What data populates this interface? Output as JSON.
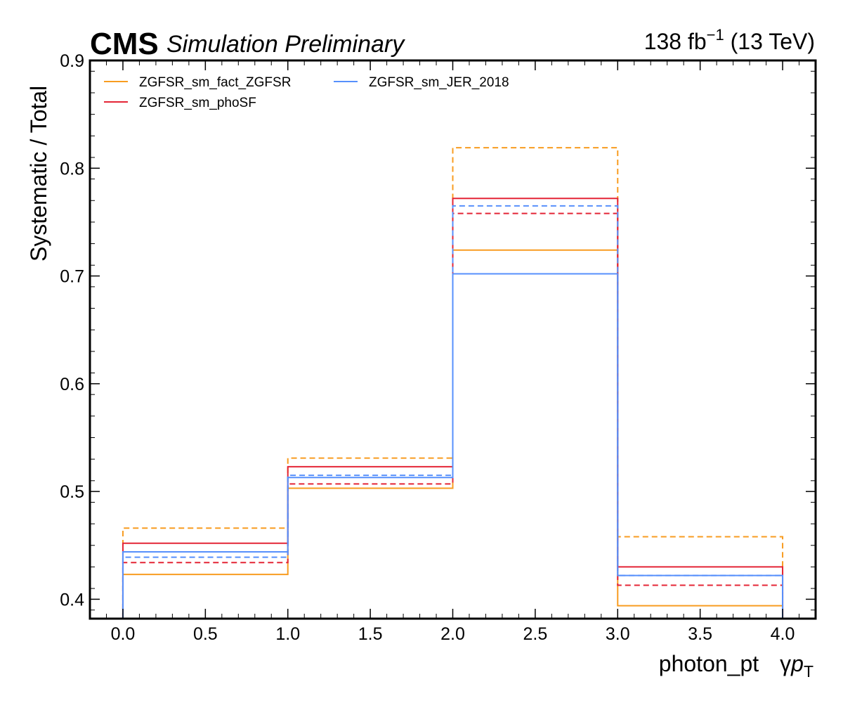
{
  "header": {
    "experiment": "CMS",
    "status": "Simulation Preliminary",
    "lumi_value": "138 fb",
    "lumi_exp": "−1",
    "energy": "(13 TeV)"
  },
  "chart_data": {
    "type": "line",
    "drawstyle": "steps",
    "xlabel": "photon_pt",
    "xlabel_suffix": "γ",
    "xlabel_var": "p",
    "xlabel_sub": "T",
    "ylabel": "Systematic / Total",
    "xlim": [
      -0.2,
      4.2
    ],
    "ylim": [
      0.382,
      0.9
    ],
    "x_ticks": [
      0.0,
      0.5,
      1.0,
      1.5,
      2.0,
      2.5,
      3.0,
      3.5,
      4.0
    ],
    "x_tick_labels": [
      "0.0",
      "0.5",
      "1.0",
      "1.5",
      "2.0",
      "2.5",
      "3.0",
      "3.5",
      "4.0"
    ],
    "y_ticks": [
      0.4,
      0.5,
      0.6,
      0.7,
      0.8,
      0.9
    ],
    "y_tick_labels": [
      "0.4",
      "0.5",
      "0.6",
      "0.7",
      "0.8",
      "0.9"
    ],
    "bin_edges": [
      0,
      1,
      2,
      3,
      4
    ],
    "legend_position": "top-left",
    "legend_columns": 2,
    "series": [
      {
        "name": "ZGFSR_sm_fact_ZGFSR",
        "color": "#f89c20",
        "style": "solid",
        "values": [
          0.423,
          0.503,
          0.724,
          0.394
        ]
      },
      {
        "name": "ZGFSR_sm_fact_ZGFSR",
        "color": "#f89c20",
        "style": "dashed",
        "values": [
          0.466,
          0.531,
          0.819,
          0.458
        ]
      },
      {
        "name": "ZGFSR_sm_phoSF",
        "color": "#e42536",
        "style": "solid",
        "values": [
          0.452,
          0.523,
          0.772,
          0.43
        ]
      },
      {
        "name": "ZGFSR_sm_phoSF",
        "color": "#e42536",
        "style": "dashed",
        "values": [
          0.434,
          0.507,
          0.758,
          0.413
        ]
      },
      {
        "name": "ZGFSR_sm_JER_2018",
        "color": "#5790fc",
        "style": "solid",
        "values": [
          0.444,
          0.513,
          0.702,
          0.422
        ]
      },
      {
        "name": "ZGFSR_sm_JER_2018",
        "color": "#5790fc",
        "style": "dashed",
        "values": [
          0.439,
          0.515,
          0.765,
          0.422
        ]
      }
    ],
    "legend": [
      {
        "label": "ZGFSR_sm_fact_ZGFSR",
        "color": "#f89c20"
      },
      {
        "label": "ZGFSR_sm_phoSF",
        "color": "#e42536"
      },
      {
        "label": "ZGFSR_sm_JER_2018",
        "color": "#5790fc"
      }
    ]
  }
}
